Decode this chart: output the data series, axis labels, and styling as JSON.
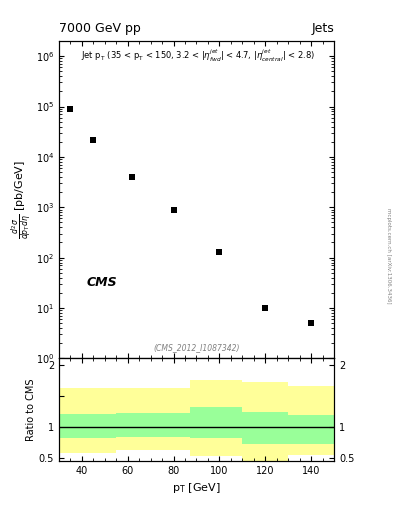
{
  "title_left": "7000 GeV pp",
  "title_right": "Jets",
  "cms_label": "CMS",
  "inspire_label": "(CMS_2012_I1087342)",
  "arxiv_label": "mcplots.cern.ch [arXiv:1306.3436]",
  "data_x": [
    35,
    45,
    62,
    80,
    100,
    120,
    140
  ],
  "data_y": [
    90000.0,
    22000.0,
    4000,
    900,
    130,
    10,
    5
  ],
  "xlim": [
    30,
    150
  ],
  "ylim_main": [
    1,
    2000000.0
  ],
  "ylim_ratio": [
    0.45,
    2.1
  ],
  "ratio_ylabel": "Ratio to CMS",
  "band_edges_x": [
    30,
    55,
    87,
    110,
    130,
    150
  ],
  "yellow_lo": [
    0.58,
    0.62,
    0.52,
    0.42,
    0.55,
    0.55
  ],
  "yellow_hi": [
    1.62,
    1.62,
    1.75,
    1.72,
    1.65,
    1.65
  ],
  "green_lo": [
    0.82,
    0.84,
    0.82,
    0.72,
    0.72,
    0.72
  ],
  "green_hi": [
    1.2,
    1.22,
    1.32,
    1.24,
    1.18,
    1.18
  ],
  "ratio_line": 1.0,
  "marker_color": "black",
  "marker_style": "s",
  "marker_size": 5,
  "yellow_color": "#ffff99",
  "green_color": "#99ff99",
  "background_color": "white"
}
